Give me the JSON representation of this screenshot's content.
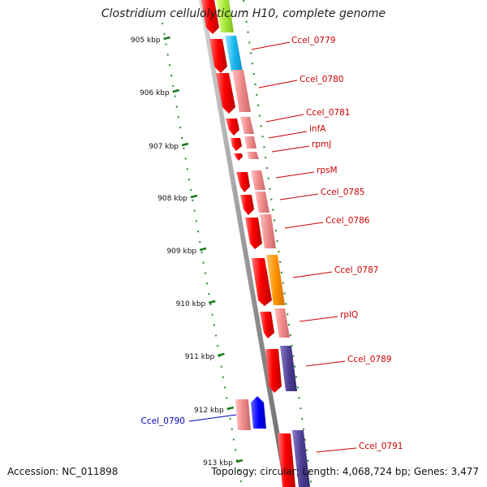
{
  "title": "Clostridium cellulolyticum H10, complete genome",
  "footer": {
    "accession": "Accession: NC_011898",
    "stats": "Topology: circular; Length: 4,068,724 bp; Genes: 3,477"
  },
  "ticks": [
    "905 kbp",
    "906 kbp",
    "907 kbp",
    "908 kbp",
    "909 kbp",
    "910 kbp",
    "911 kbp",
    "912 kbp",
    "913 kbp"
  ],
  "genes": [
    {
      "label": "Ccel_0779",
      "color": "#cc0000"
    },
    {
      "label": "Ccel_0780",
      "color": "#cc0000"
    },
    {
      "label": "Ccel_0781",
      "color": "#cc0000"
    },
    {
      "label": "infA",
      "color": "#cc0000"
    },
    {
      "label": "rpmJ",
      "color": "#cc0000"
    },
    {
      "label": "rpsM",
      "color": "#cc0000"
    },
    {
      "label": "Ccel_0785",
      "color": "#cc0000"
    },
    {
      "label": "Ccel_0786",
      "color": "#cc0000"
    },
    {
      "label": "Ccel_0787",
      "color": "#cc0000"
    },
    {
      "label": "rplQ",
      "color": "#cc0000"
    },
    {
      "label": "Ccel_0789",
      "color": "#cc0000"
    },
    {
      "label": "Ccel_0790",
      "color": "#0000bb"
    },
    {
      "label": "Ccel_0791",
      "color": "#cc0000"
    }
  ]
}
